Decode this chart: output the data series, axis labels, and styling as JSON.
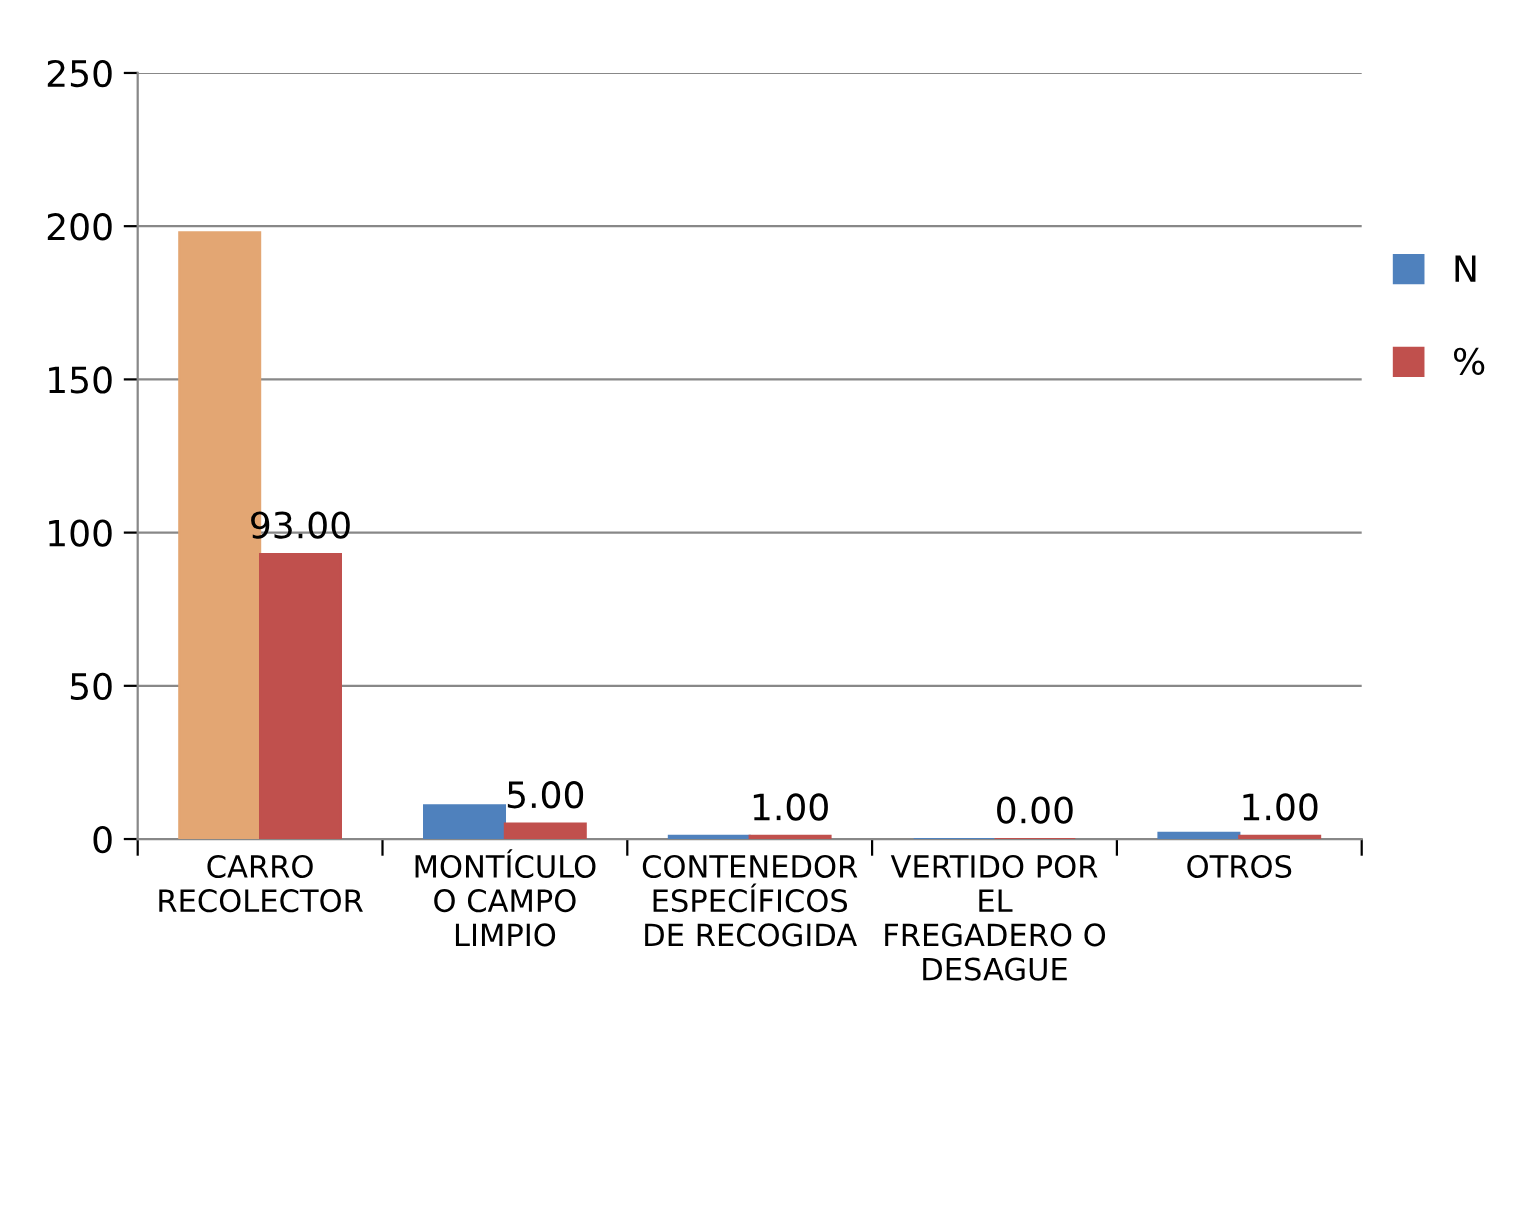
{
  "chart_data": {
    "type": "bar",
    "categories": [
      "CARRO\nRECOLECTOR",
      "MONTÍCULO\nO CAMPO\nLIMPIO",
      "CONTENEDOR\nESPECÍFICOS\nDE RECOGIDA",
      "VERTIDO POR\nEL\nFREGADERO O\nDESAGUE",
      "OTROS"
    ],
    "series": [
      {
        "name": "N",
        "color": "#4f81bd",
        "colors": [
          "#e3a673",
          "#4f81bd",
          "#4f81bd",
          "#4f81bd",
          "#4f81bd"
        ],
        "values": [
          198,
          11,
          1,
          0,
          2
        ]
      },
      {
        "name": "%",
        "color": "#c0504d",
        "values": [
          93,
          5,
          1,
          0,
          1
        ],
        "value_labels": [
          "93.00",
          "5.00",
          "1.00",
          "0.00",
          "1.00"
        ]
      }
    ],
    "ylim": [
      0,
      250
    ],
    "yticks": [
      0,
      50,
      100,
      150,
      200,
      250
    ],
    "grid": "y",
    "legend": "right"
  }
}
